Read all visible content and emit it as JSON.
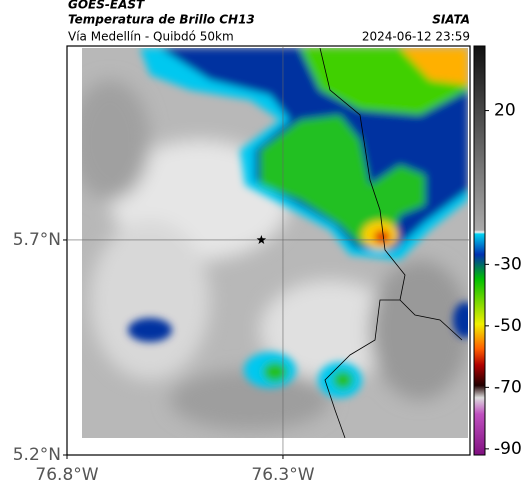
{
  "header": {
    "satellite": "GOES-EAST",
    "title": "Temperatura de Brillo CH13",
    "subtitle": "Vía Medellín - Quibdó 50km",
    "source": "SIATA",
    "timestamp": "2024-06-12 23:59"
  },
  "map": {
    "lonlim": [
      -76.8,
      -75.867
    ],
    "latlim": [
      5.2,
      6.151
    ],
    "lonticks": [
      {
        "value": -76.8,
        "label": "76.8°W"
      },
      {
        "value": -76.3,
        "label": "76.3°W"
      }
    ],
    "latticks": [
      {
        "value": 5.2,
        "label": "5.2°N"
      },
      {
        "value": 5.7,
        "label": "5.7°N"
      }
    ],
    "grid_lon": -76.3,
    "grid_lat": 5.7,
    "marker": {
      "lon": -76.35,
      "lat": 5.7
    }
  },
  "colorbar": {
    "clim": [
      -92,
      41
    ],
    "ticks": [
      20,
      -30,
      -50,
      -70,
      -90
    ]
  }
}
